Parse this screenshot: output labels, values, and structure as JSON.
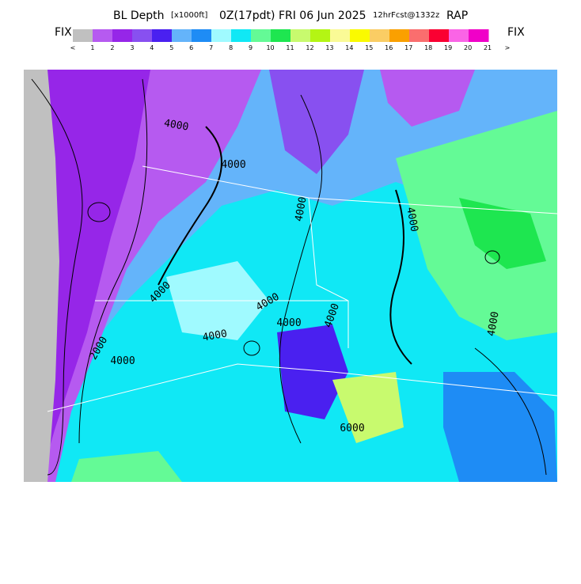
{
  "title": {
    "name": "BL Depth",
    "units": "[x1000ft]",
    "time": "0Z(17pdt) FRI 06 Jun 2025",
    "forecast": "12hrFcst@1332z",
    "model": "RAP"
  },
  "colorbar": {
    "left_label": "FIX",
    "right_label": "FIX",
    "colors": [
      "#c0c0c0",
      "#b65af0",
      "#9626e8",
      "#8850f0",
      "#4a20f0",
      "#64b4fa",
      "#1e8cf5",
      "#a0faff",
      "#10e8f5",
      "#64fa96",
      "#1ee650",
      "#c8fa6e",
      "#b4f514",
      "#fafa96",
      "#fafa00",
      "#facd64",
      "#faa000",
      "#fa6e6e",
      "#fa0032",
      "#fa64e6",
      "#f000c8"
    ],
    "tick_labels": [
      "<",
      "1",
      "2",
      "3",
      "4",
      "5",
      "6",
      "7",
      "8",
      "9",
      "10",
      "11",
      "12",
      "13",
      "14",
      "15",
      "16",
      "17",
      "18",
      "19",
      "20",
      "21",
      ">"
    ]
  },
  "contour_labels": [
    "4000",
    "4000",
    "4000",
    "4000",
    "4000",
    "4000",
    "4000",
    "4000",
    "4000",
    "2000",
    "4000",
    "6000",
    "4000"
  ]
}
